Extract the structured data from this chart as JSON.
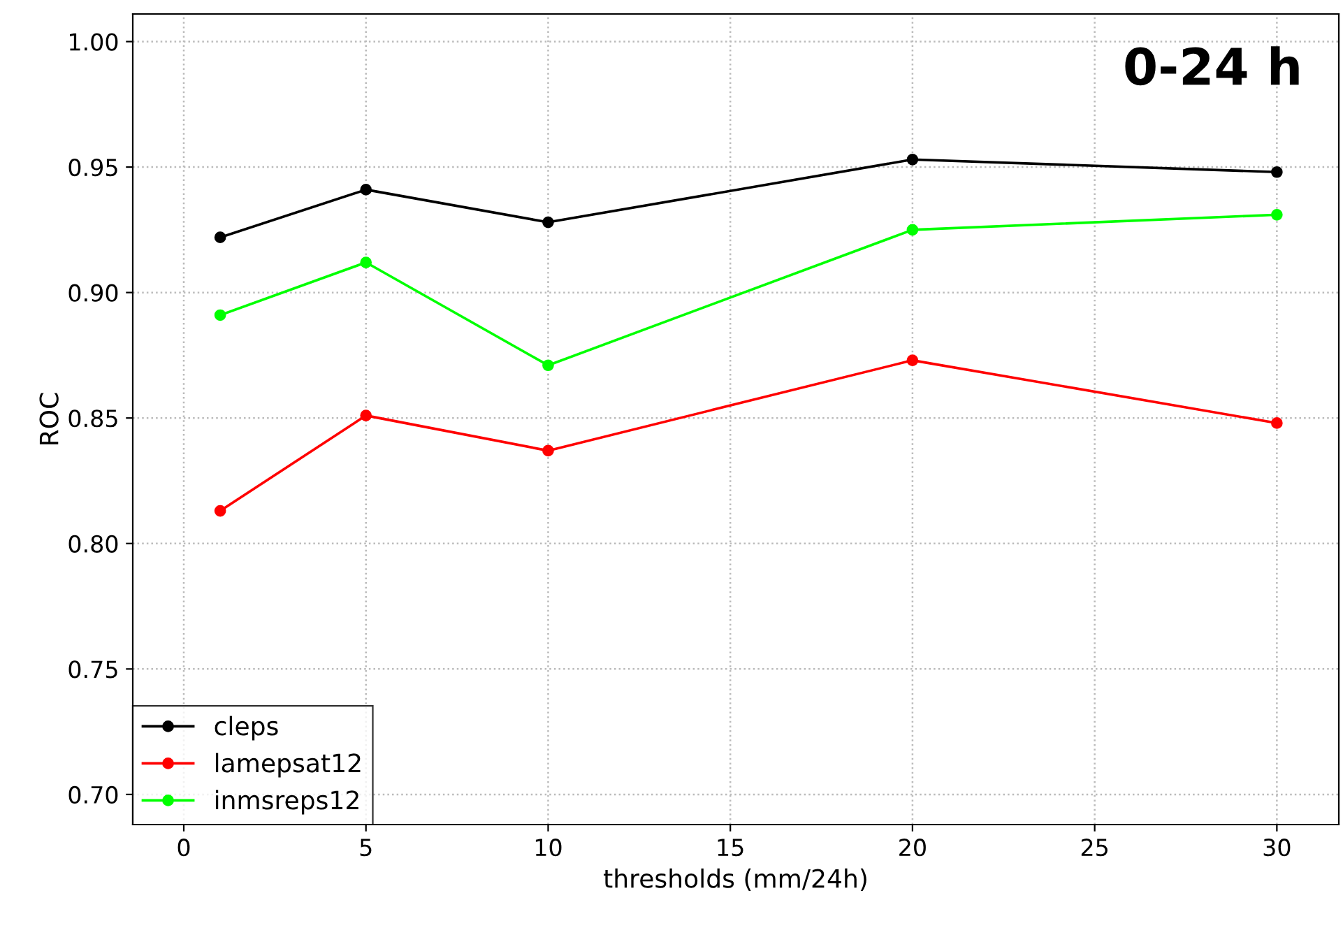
{
  "chart_data": {
    "type": "line",
    "xlabel": "thresholds (mm/24h)",
    "ylabel": "ROC",
    "annotations": [
      "0-24 h"
    ],
    "x": [
      1,
      5,
      10,
      20,
      30
    ],
    "series": [
      {
        "name": "cleps",
        "color": "#000000",
        "values": [
          0.922,
          0.941,
          0.928,
          0.953,
          0.948
        ]
      },
      {
        "name": "lamepsat12",
        "color": "#ff0000",
        "values": [
          0.813,
          0.851,
          0.837,
          0.873,
          0.848
        ]
      },
      {
        "name": "inmsreps12",
        "color": "#00ff00",
        "values": [
          0.891,
          0.912,
          0.871,
          0.925,
          0.931
        ]
      }
    ],
    "xlim": [
      -1.4,
      31.7
    ],
    "xticks": [
      0,
      5,
      10,
      15,
      20,
      25,
      30
    ],
    "ylim": [
      0.688,
      1.011
    ],
    "yticks": [
      {
        "value": 0.7,
        "label": "0.70"
      },
      {
        "value": 0.75,
        "label": "0.75"
      },
      {
        "value": 0.8,
        "label": "0.80"
      },
      {
        "value": 0.85,
        "label": "0.85"
      },
      {
        "value": 0.9,
        "label": "0.90"
      },
      {
        "value": 0.95,
        "label": "0.95"
      },
      {
        "value": 1.0,
        "label": "1.00"
      }
    ],
    "grid": true,
    "legend": "bottom left",
    "marker": "circle",
    "line_style": "solid"
  }
}
